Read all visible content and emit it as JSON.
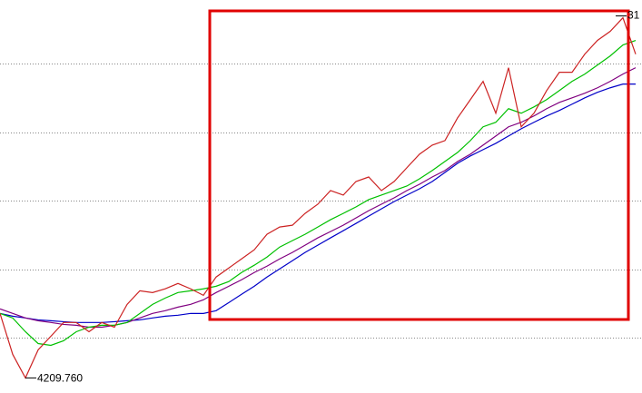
{
  "chart_data": {
    "type": "line",
    "categories": [
      null,
      null,
      null,
      null,
      null,
      null,
      null,
      null,
      null,
      null,
      null,
      null,
      null,
      null,
      null,
      null,
      null,
      null,
      null,
      null,
      null,
      null,
      null,
      null,
      null,
      null,
      null,
      null,
      null,
      null,
      null,
      null,
      null,
      null,
      null,
      null,
      null,
      null,
      null,
      null,
      null,
      null,
      null,
      null,
      null,
      null,
      null,
      null,
      null,
      null,
      null
    ],
    "ylim": [
      4100,
      6960
    ],
    "series": [
      {
        "color": "#0000c8",
        "values": [
          4679,
          4659,
          4646,
          4632,
          4626,
          4619,
          4613,
          4613,
          4613,
          4619,
          4626,
          4632,
          4646,
          4659,
          4666,
          4679,
          4679,
          4699,
          4758,
          4818,
          4877,
          4944,
          5003,
          5063,
          5123,
          5176,
          5229,
          5281,
          5334,
          5387,
          5440,
          5493,
          5540,
          5586,
          5639,
          5705,
          5772,
          5825,
          5871,
          5917,
          5970,
          6023,
          6070,
          6116,
          6156,
          6202,
          6248,
          6288,
          6321,
          6348,
          6348
        ]
      },
      {
        "color": "#800080",
        "values": [
          4712,
          4679,
          4646,
          4626,
          4613,
          4599,
          4593,
          4579,
          4579,
          4593,
          4613,
          4646,
          4679,
          4699,
          4725,
          4745,
          4778,
          4831,
          4877,
          4924,
          4977,
          5023,
          5076,
          5123,
          5176,
          5229,
          5275,
          5321,
          5374,
          5427,
          5474,
          5520,
          5573,
          5619,
          5672,
          5719,
          5785,
          5838,
          5904,
          5970,
          6037,
          6070,
          6116,
          6169,
          6215,
          6248,
          6282,
          6321,
          6368,
          6421,
          6467
        ]
      },
      {
        "color": "#00c000",
        "values": [
          4679,
          4646,
          4546,
          4460,
          4447,
          4480,
          4546,
          4579,
          4593,
          4593,
          4613,
          4679,
          4745,
          4791,
          4831,
          4844,
          4858,
          4877,
          4911,
          4977,
          5030,
          5089,
          5162,
          5209,
          5255,
          5308,
          5361,
          5407,
          5454,
          5507,
          5540,
          5573,
          5606,
          5659,
          5719,
          5785,
          5851,
          5937,
          6037,
          6070,
          6169,
          6136,
          6182,
          6235,
          6301,
          6368,
          6421,
          6487,
          6553,
          6633,
          6666
        ]
      },
      {
        "color": "#cc2222",
        "values": [
          4679,
          4381,
          4209.76,
          4414,
          4513,
          4613,
          4613,
          4546,
          4613,
          4579,
          4745,
          4844,
          4831,
          4858,
          4897,
          4858,
          4811,
          4944,
          5010,
          5076,
          5142,
          5255,
          5308,
          5321,
          5407,
          5474,
          5573,
          5540,
          5639,
          5672,
          5573,
          5639,
          5739,
          5838,
          5904,
          5937,
          6103,
          6235,
          6368,
          6136,
          6467,
          6037,
          6136,
          6301,
          6434,
          6434,
          6566,
          6666,
          6732,
          6831,
          6566
        ]
      }
    ],
    "low_label": {
      "value": 4209.76,
      "label": "4209.760"
    },
    "high_label": "31"
  }
}
